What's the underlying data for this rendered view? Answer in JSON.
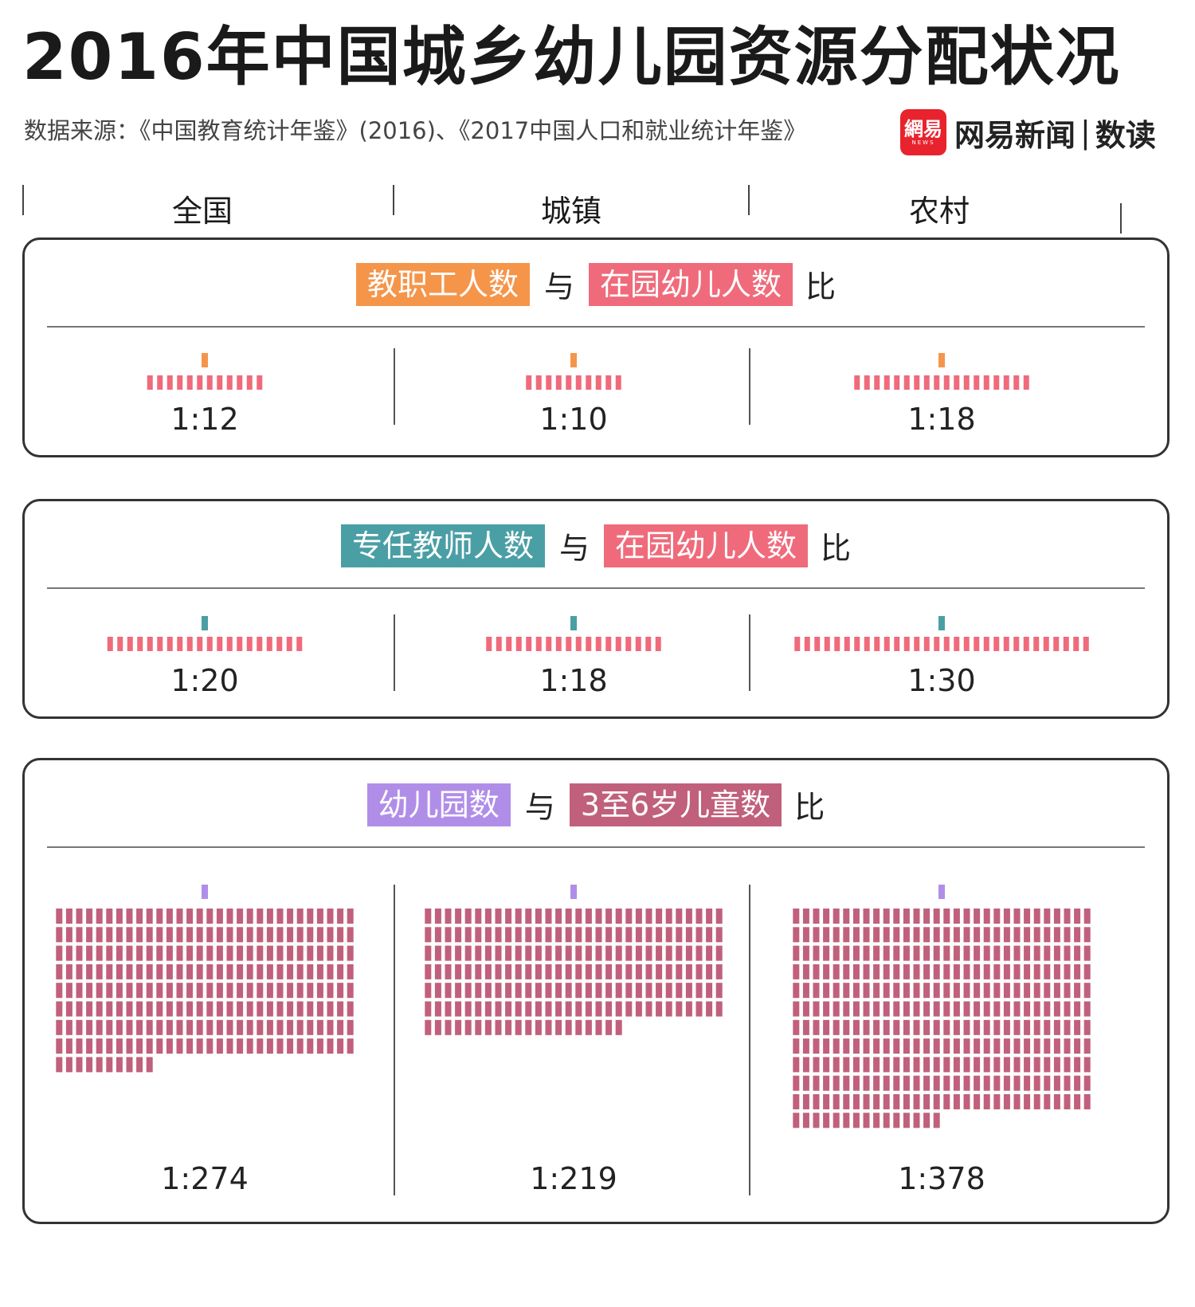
{
  "title": "2016年中国城乡幼儿园资源分配状况",
  "source": "数据来源：《中国教育统计年鉴》(2016)、《2017中国人口和就业统计年鉴》",
  "brand": {
    "logo_text": "網易",
    "logo_sub": "NEWS",
    "name": "网易新闻",
    "separator": "|",
    "sub": "数读"
  },
  "columns": [
    "全国",
    "城镇",
    "农村"
  ],
  "colors": {
    "staff": "#f5954a",
    "teacher": "#4a9fa5",
    "kindergarten": "#b08ee8",
    "children": "#ef6b7b",
    "children_age": "#c0607c"
  },
  "panels": [
    {
      "tag1": "教职工人数",
      "connector": "与",
      "tag2": "在园幼儿人数",
      "suffix": "比",
      "ratio_labels": [
        "1:12",
        "1:10",
        "1:18"
      ]
    },
    {
      "tag1": "专任教师人数",
      "connector": "与",
      "tag2": "在园幼儿人数",
      "suffix": "比",
      "ratio_labels": [
        "1:20",
        "1:18",
        "1:30"
      ]
    },
    {
      "tag1": "幼儿园数",
      "connector": "与",
      "tag2": "3至6岁儿童数",
      "suffix": "比",
      "ratio_labels": [
        "1:274",
        "1:219",
        "1:378"
      ]
    }
  ],
  "chart_data": [
    {
      "type": "bar",
      "title": "教职工人数 与 在园幼儿人数 比",
      "categories": [
        "全国",
        "城镇",
        "农村"
      ],
      "values": [
        12,
        10,
        18
      ],
      "unit_label": "在园幼儿人数 per 1 教职工"
    },
    {
      "type": "bar",
      "title": "专任教师人数 与 在园幼儿人数 比",
      "categories": [
        "全国",
        "城镇",
        "农村"
      ],
      "values": [
        20,
        18,
        30
      ],
      "unit_label": "在园幼儿人数 per 1 专任教师"
    },
    {
      "type": "bar",
      "title": "幼儿园数 与 3至6岁儿童数 比",
      "categories": [
        "全国",
        "城镇",
        "农村"
      ],
      "values": [
        274,
        219,
        378
      ],
      "unit_label": "3至6岁儿童数 per 1 幼儿园"
    }
  ]
}
